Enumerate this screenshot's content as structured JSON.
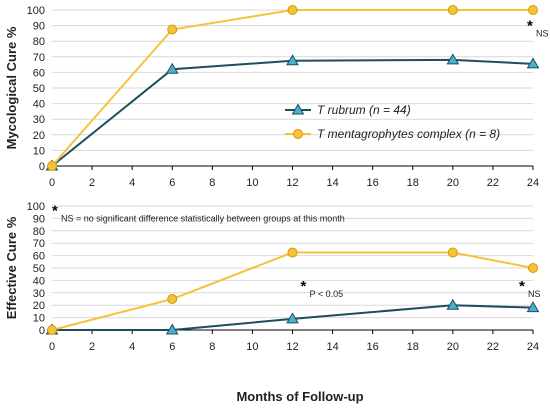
{
  "chart_data": [
    {
      "type": "line",
      "ylabel": "Mycological Cure %",
      "x": [
        0,
        6,
        12,
        20,
        24
      ],
      "xlim": [
        0,
        24
      ],
      "xticks": [
        0,
        2,
        4,
        6,
        8,
        10,
        12,
        14,
        16,
        18,
        20,
        22,
        24
      ],
      "ylim": [
        0,
        100
      ],
      "yticks": [
        0,
        10,
        20,
        30,
        40,
        50,
        60,
        70,
        80,
        90,
        100
      ],
      "grid": "horizontal",
      "legend": "center-right",
      "series": [
        {
          "name": "T rubrum (n = 44)",
          "values": [
            0,
            62,
            67.5,
            68,
            65.5
          ],
          "color": "#1f4e5f",
          "marker": "triangle",
          "marker_color": "#4ab0cf"
        },
        {
          "name": "T mentagrophytes complex (n = 8)",
          "values": [
            0,
            87.5,
            100,
            100,
            100
          ],
          "color": "#f5c33b",
          "marker": "circle",
          "marker_color": "#f5c33b"
        }
      ],
      "annotations": [
        {
          "star": "*",
          "text": "NS",
          "x": 24,
          "y": 88
        }
      ]
    },
    {
      "type": "line",
      "ylabel": "Effective Cure %",
      "xlabel": "Months of Follow-up",
      "x": [
        0,
        6,
        12,
        20,
        24
      ],
      "xlim": [
        0,
        24
      ],
      "xticks": [
        0,
        2,
        4,
        6,
        8,
        10,
        12,
        14,
        16,
        18,
        20,
        22,
        24
      ],
      "ylim": [
        0,
        100
      ],
      "yticks": [
        0,
        10,
        20,
        30,
        40,
        50,
        60,
        70,
        80,
        90,
        100
      ],
      "grid": "horizontal",
      "series": [
        {
          "values": [
            0,
            0,
            9,
            20,
            18
          ],
          "color": "#1f4e5f",
          "marker": "triangle",
          "marker_color": "#4ab0cf"
        },
        {
          "values": [
            0,
            25,
            62.5,
            62.5,
            50
          ],
          "color": "#f5c33b",
          "marker": "circle",
          "marker_color": "#f5c33b"
        }
      ],
      "annotations": [
        {
          "star": "*",
          "text": "NS = no significant difference statistically between groups at this month",
          "x": 0.3,
          "y": 94
        },
        {
          "star": "*",
          "text": "P < 0.05",
          "x": 12.7,
          "y": 33
        },
        {
          "star": "*",
          "text": "NS",
          "x": 23.6,
          "y": 33
        }
      ]
    }
  ]
}
